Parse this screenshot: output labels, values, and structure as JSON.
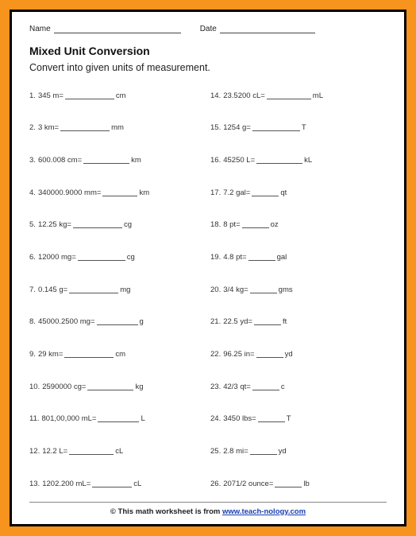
{
  "colors": {
    "frame": "#f7941d",
    "border": "#000000",
    "page_bg": "#ffffff",
    "text": "#222222",
    "link": "#1a3fb0"
  },
  "header": {
    "name_label": "Name",
    "date_label": "Date"
  },
  "title": "Mixed Unit Conversion",
  "instruction": "Convert into given units of measurement.",
  "problems_left": [
    {
      "n": "1.",
      "lhs": "345 m",
      "eq": "=",
      "blank_w": 62,
      "unit": "cm"
    },
    {
      "n": "2.",
      "lhs": "3 km",
      "eq": "=",
      "blank_w": 62,
      "unit": "mm"
    },
    {
      "n": "3.",
      "lhs": "600.008 cm",
      "eq": "=",
      "blank_w": 58,
      "unit": "km"
    },
    {
      "n": "4.",
      "lhs": "340000.9000 mm",
      "eq": "=",
      "blank_w": 44,
      "unit": "km"
    },
    {
      "n": "5.",
      "lhs": "12.25 kg",
      "eq": "=",
      "blank_w": 62,
      "unit": "cg"
    },
    {
      "n": "6.",
      "lhs": "12000 mg",
      "eq": "=",
      "blank_w": 60,
      "unit": "cg"
    },
    {
      "n": "7.",
      "lhs": "0.145 g",
      "eq": "=",
      "blank_w": 62,
      "unit": "mg"
    },
    {
      "n": "8.",
      "lhs": "45000.2500 mg",
      "eq": "=",
      "blank_w": 52,
      "unit": "g"
    },
    {
      "n": "9.",
      "lhs": "29 km",
      "eq": "=",
      "blank_w": 62,
      "unit": "cm"
    },
    {
      "n": "10.",
      "lhs": "2590000 cg",
      "eq": "=",
      "blank_w": 58,
      "unit": "kg"
    },
    {
      "n": "11.",
      "lhs": "801,00,000 mL",
      "eq": "=",
      "blank_w": 52,
      "unit": "L"
    },
    {
      "n": "12.",
      "lhs": "12.2 L",
      "eq": "=",
      "blank_w": 56,
      "unit": "cL"
    },
    {
      "n": "13.",
      "lhs": "1202.200 mL",
      "eq": "=",
      "blank_w": 50,
      "unit": "cL"
    }
  ],
  "problems_right": [
    {
      "n": "14.",
      "lhs": "23.5200 cL",
      "eq": "=",
      "blank_w": 56,
      "unit": "mL"
    },
    {
      "n": "15.",
      "lhs": "1254 g",
      "eq": "=",
      "blank_w": 60,
      "unit": "T"
    },
    {
      "n": "16.",
      "lhs": "45250 L",
      "eq": "=",
      "blank_w": 58,
      "unit": "kL"
    },
    {
      "n": "17.",
      "lhs": "7.2 gal",
      "eq": "=",
      "blank_w": 34,
      "unit": "qt"
    },
    {
      "n": "18.",
      "lhs": "8 pt",
      "eq": "=",
      "blank_w": 34,
      "unit": "oz"
    },
    {
      "n": "19.",
      "lhs": "4.8 pt",
      "eq": "=",
      "blank_w": 34,
      "unit": "gal"
    },
    {
      "n": "20.",
      "lhs": "3/4 kg",
      "eq": "=",
      "blank_w": 34,
      "unit": "gms"
    },
    {
      "n": "21.",
      "lhs": "22.5 yd",
      "eq": "=",
      "blank_w": 34,
      "unit": "ft"
    },
    {
      "n": "22.",
      "lhs": "96.25 in",
      "eq": "=",
      "blank_w": 34,
      "unit": "yd"
    },
    {
      "n": "23.",
      "lhs": "42/3 qt",
      "eq": "=",
      "blank_w": 34,
      "unit": "c"
    },
    {
      "n": "24.",
      "lhs": "3450 lbs",
      "eq": "=",
      "blank_w": 34,
      "unit": "T"
    },
    {
      "n": "25.",
      "lhs": "2.8 mi",
      "eq": "=",
      "blank_w": 34,
      "unit": "yd"
    },
    {
      "n": "26.",
      "lhs": "2071/2 ounce",
      "eq": "=",
      "blank_w": 34,
      "unit": "lb"
    }
  ],
  "footer": {
    "prefix": "© This math worksheet is from ",
    "link_text": "www.teach-nology.com"
  }
}
